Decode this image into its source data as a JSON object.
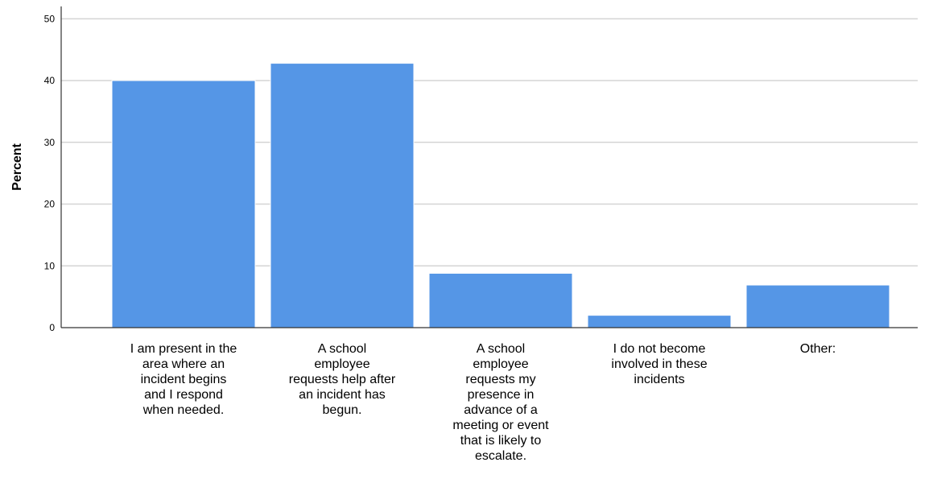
{
  "chart_data": {
    "type": "bar",
    "title": "",
    "xlabel": "",
    "ylabel": "Percent",
    "ylim": [
      0,
      52
    ],
    "yticks": [
      0,
      10,
      20,
      30,
      40,
      50
    ],
    "grid": true,
    "bar_color": "#5596e6",
    "categories": [
      [
        "I am present in the",
        "area where an",
        "incident begins",
        "and I respond",
        "when needed."
      ],
      [
        "A school",
        "employee",
        "requests help after",
        "an incident has",
        "begun."
      ],
      [
        "A school",
        "employee",
        "requests my",
        "presence in",
        "advance of a",
        "meeting or event",
        "that is likely to",
        "escalate."
      ],
      [
        "I do not become",
        "involved in these",
        "incidents"
      ],
      [
        "Other:"
      ]
    ],
    "values": [
      40.0,
      42.8,
      8.8,
      2.0,
      6.9
    ]
  }
}
